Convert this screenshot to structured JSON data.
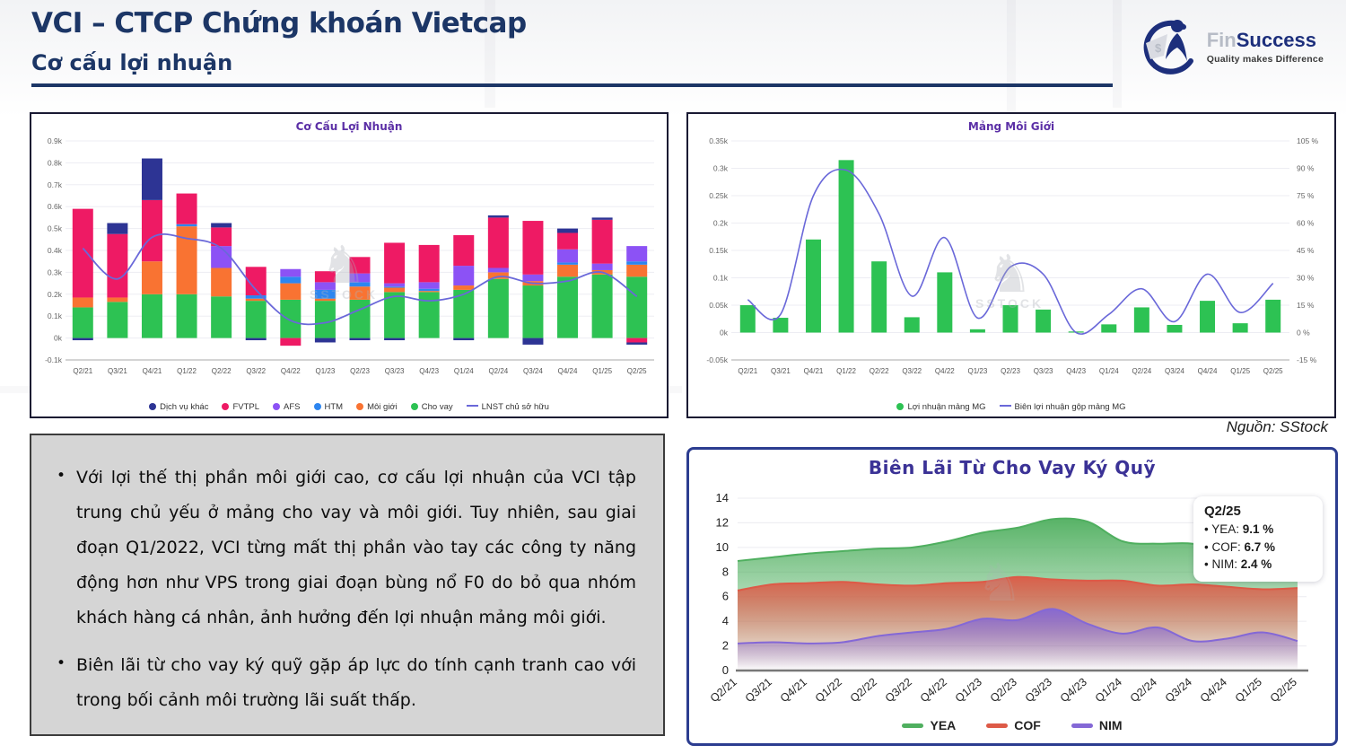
{
  "header": {
    "title": "VCI – CTCP Chứng khoán Vietcap",
    "subtitle": "Cơ cấu lợi nhuận"
  },
  "logo": {
    "brand_fin": "Fin",
    "brand_success": "Success",
    "tagline": "Quality makes Difference"
  },
  "source_note": "Nguồn: SStock",
  "watermark_text": "SSTOCK",
  "commentary": {
    "bullets": [
      "Với lợi thế thị phần môi giới cao, cơ cấu lợi nhuận của VCI tập trung chủ yếu ở mảng cho vay và môi giới. Tuy nhiên, sau giai đoạn Q1/2022, VCI từng mất thị phần vào tay các công ty năng động hơn như VPS trong giai đoạn bùng nổ F0 do bỏ qua nhóm khách hàng cá nhân, ảnh hưởng đến lợi nhuận mảng môi giới.",
      "Biên lãi từ cho vay ký quỹ gặp áp lực do tính cạnh tranh cao với trong bối cảnh môi trường lãi suất thấp."
    ]
  },
  "chart_data": [
    {
      "type": "bar",
      "subtype": "stacked-bar-with-line",
      "title": "Cơ Cấu Lợi Nhuận",
      "categories": [
        "Q2/21",
        "Q3/21",
        "Q4/21",
        "Q1/22",
        "Q2/22",
        "Q3/22",
        "Q4/22",
        "Q1/23",
        "Q2/23",
        "Q3/23",
        "Q4/23",
        "Q1/24",
        "Q2/24",
        "Q3/24",
        "Q4/24",
        "Q1/25",
        "Q2/25"
      ],
      "unit": "k (tỷ VND)",
      "ylim": [
        -0.1,
        0.9
      ],
      "ytick_step": 0.1,
      "grid": true,
      "legend_position": "bottom",
      "series": [
        {
          "name": "Dịch vụ khác",
          "color": "#2d3494",
          "values": [
            -0.01,
            0.05,
            0.19,
            0.0,
            0.02,
            -0.01,
            0.0,
            -0.02,
            -0.01,
            -0.01,
            0.0,
            -0.01,
            0.01,
            -0.03,
            0.02,
            0.01,
            -0.01
          ]
        },
        {
          "name": "FVTPL",
          "color": "#ee1a64",
          "values": [
            0.405,
            0.29,
            0.28,
            0.14,
            0.085,
            0.13,
            -0.035,
            0.05,
            0.075,
            0.185,
            0.17,
            0.14,
            0.23,
            0.245,
            0.075,
            0.2,
            -0.02
          ]
        },
        {
          "name": "AFS",
          "color": "#8c52f5",
          "values": [
            0,
            0,
            0,
            0,
            0.1,
            0,
            0.035,
            0.035,
            0.04,
            0.015,
            0.03,
            0.09,
            0.02,
            0.03,
            0.06,
            0.03,
            0.07
          ]
        },
        {
          "name": "HTM",
          "color": "#2d86f0",
          "values": [
            0,
            0,
            0,
            0.01,
            0,
            0.015,
            0.03,
            0.04,
            0.02,
            0.005,
            0.01,
            0,
            0,
            0,
            0.01,
            0,
            0.015
          ]
        },
        {
          "name": "Môi giới",
          "color": "#f97332",
          "values": [
            0.045,
            0.02,
            0.15,
            0.31,
            0.13,
            0.01,
            0.075,
            0.01,
            0.06,
            0.02,
            0.005,
            0.02,
            0.03,
            0.02,
            0.055,
            0.02,
            0.055
          ]
        },
        {
          "name": "Cho vay",
          "color": "#2dc253",
          "values": [
            0.14,
            0.165,
            0.2,
            0.2,
            0.19,
            0.17,
            0.175,
            0.17,
            0.175,
            0.21,
            0.21,
            0.22,
            0.27,
            0.24,
            0.28,
            0.29,
            0.28
          ]
        }
      ],
      "line_series": {
        "name": "LNST chủ sở hữu",
        "color": "#6a68d9",
        "values": [
          0.41,
          0.27,
          0.46,
          0.455,
          0.41,
          0.22,
          0.08,
          0.07,
          0.13,
          0.19,
          0.17,
          0.2,
          0.28,
          0.25,
          0.26,
          0.3,
          0.19
        ]
      }
    },
    {
      "type": "bar",
      "subtype": "bar-with-line-dual-axis",
      "title": "Mảng Môi Giới",
      "categories": [
        "Q2/21",
        "Q3/21",
        "Q4/21",
        "Q1/22",
        "Q2/22",
        "Q3/22",
        "Q4/22",
        "Q1/23",
        "Q2/23",
        "Q3/23",
        "Q4/23",
        "Q1/24",
        "Q2/24",
        "Q3/24",
        "Q4/24",
        "Q1/25",
        "Q2/25"
      ],
      "ylim_left": [
        -0.05,
        0.35
      ],
      "ytick_step_left": 0.05,
      "ylim_right": [
        -15,
        105
      ],
      "ytick_step_right": 15,
      "grid": true,
      "legend_position": "bottom",
      "bar_series": {
        "name": "Lợi nhuận mảng MG",
        "color": "#2dc253",
        "values": [
          0.05,
          0.027,
          0.17,
          0.315,
          0.13,
          0.028,
          0.11,
          0.006,
          0.05,
          0.042,
          0.002,
          0.015,
          0.046,
          0.014,
          0.058,
          0.017,
          0.06
        ]
      },
      "line_series": {
        "name": "Biên lợi nhuận gộp mảng MG",
        "color": "#6a68d9",
        "axis": "right",
        "values": [
          18,
          10,
          75,
          89,
          65,
          20,
          52,
          8,
          36,
          32,
          0,
          10,
          24,
          6,
          32,
          11,
          27
        ]
      }
    },
    {
      "type": "area",
      "title": "Biên Lãi Từ Cho Vay Ký Quỹ",
      "categories": [
        "Q2/21",
        "Q3/21",
        "Q4/21",
        "Q1/22",
        "Q2/22",
        "Q3/22",
        "Q4/22",
        "Q1/23",
        "Q2/23",
        "Q3/23",
        "Q4/23",
        "Q1/24",
        "Q2/24",
        "Q3/24",
        "Q4/24",
        "Q1/25",
        "Q2/25"
      ],
      "ylim": [
        0,
        14
      ],
      "ytick_step": 2,
      "grid": true,
      "legend_position": "bottom",
      "series": [
        {
          "name": "YEA",
          "color": "#4faf5f",
          "values": [
            8.9,
            9.2,
            9.5,
            9.7,
            9.9,
            10.0,
            10.5,
            11.2,
            11.6,
            12.3,
            12.1,
            10.5,
            10.3,
            10.3,
            9.5,
            9.2,
            9.1
          ]
        },
        {
          "name": "COF",
          "color": "#dd5a47",
          "values": [
            6.5,
            7.0,
            7.1,
            7.2,
            7.0,
            6.9,
            7.1,
            7.2,
            7.6,
            7.4,
            7.3,
            7.3,
            6.9,
            7.0,
            6.8,
            6.6,
            6.7
          ]
        },
        {
          "name": "NIM",
          "color": "#8468d6",
          "values": [
            2.2,
            2.3,
            2.2,
            2.3,
            2.8,
            3.1,
            3.4,
            4.2,
            4.1,
            5.0,
            3.8,
            3.0,
            3.5,
            2.4,
            2.6,
            3.1,
            2.4
          ]
        }
      ],
      "tooltip": {
        "label": "Q2/25",
        "items": [
          {
            "name": "YEA",
            "value": "9.1 %"
          },
          {
            "name": "COF",
            "value": "6.7 %"
          },
          {
            "name": "NIM",
            "value": "2.4 %"
          }
        ]
      }
    }
  ]
}
